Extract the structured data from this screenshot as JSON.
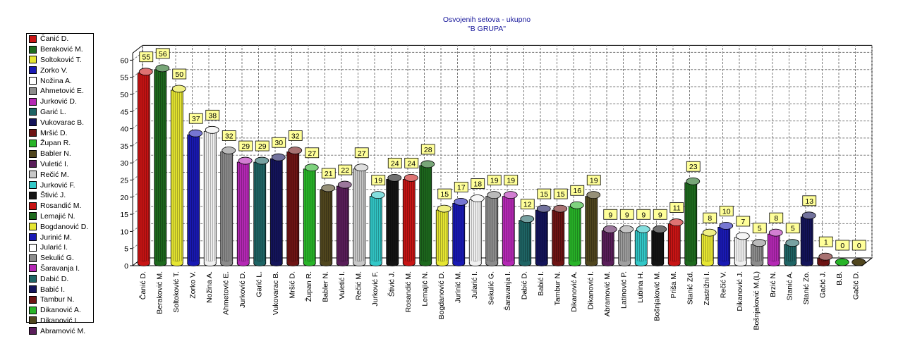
{
  "chart_data": {
    "type": "bar",
    "title": "Osvojenih setova - ukupno",
    "subtitle": "\"B GRUPA\"",
    "ylim": [
      0,
      60
    ],
    "yticks": [
      0,
      5,
      10,
      15,
      20,
      25,
      30,
      35,
      40,
      45,
      50,
      55,
      60
    ],
    "grid": true,
    "legend_position": "left",
    "categories": [
      "Čanić D.",
      "Beraković M.",
      "Soltoković T.",
      "Zorko V.",
      "Nožina A.",
      "Ahmetović E.",
      "Jurković D.",
      "Garić L.",
      "Vukovarac B.",
      "Mršić D.",
      "Župan R.",
      "Babler N.",
      "Vuletić I.",
      "Rečić M.",
      "Jurković F.",
      "Štivić J.",
      "Rosandić M.",
      "Lemajić N.",
      "Bogdanović D.",
      "Jurinić M.",
      "Jularić I.",
      "Sekulić G.",
      "Šaravanja I.",
      "Dabić D.",
      "Babić I.",
      "Tambur N.",
      "Dikanović A.",
      "Dikanović I.",
      "Abramović M.",
      "Latinović P.",
      "Lubina H.",
      "Bošnjaković M.",
      "Priša M.",
      "Stanić Zd.",
      "Zastrižni I.",
      "Rečić V.",
      "Dikanović J.",
      "Bošnjaković M.(L)",
      "Brzić N.",
      "Stanić A.",
      "Stanić Zo.",
      "Gačić J.",
      "B.B.",
      "Gačić D."
    ],
    "values": [
      55,
      56,
      50,
      37,
      38,
      32,
      29,
      29,
      30,
      32,
      27,
      21,
      22,
      27,
      19,
      24,
      24,
      28,
      15,
      17,
      18,
      19,
      19,
      12,
      15,
      15,
      16,
      19,
      9,
      9,
      9,
      9,
      11,
      23,
      8,
      10,
      7,
      5,
      8,
      5,
      13,
      1,
      0,
      0
    ],
    "colors": [
      "#c81414",
      "#1e6a1e",
      "#e6e632",
      "#1a1ab4",
      "#f0f0f0",
      "#8c8c8c",
      "#b428b4",
      "#1e6464",
      "#14145a",
      "#6e1414",
      "#28b428",
      "#50461e",
      "#5a1e5a",
      "#c8c8c8",
      "#32c8c8",
      "#141414",
      "#c81414",
      "#1e6a1e",
      "#e6e632",
      "#1a1ab4",
      "#f0f0f0",
      "#8c8c8c",
      "#b428b4",
      "#1e6464",
      "#14145a",
      "#6e1414",
      "#28b428",
      "#50461e",
      "#5a1e5a",
      "#a0a0a0",
      "#32c8c8",
      "#141414",
      "#c81414",
      "#1e6a1e",
      "#e6e632",
      "#1a1ab4",
      "#f0f0f0",
      "#8c8c8c",
      "#b428b4",
      "#1e6464",
      "#14145a",
      "#6e1414",
      "#28b428",
      "#50461e"
    ]
  },
  "legend": {
    "items": [
      {
        "label": "Čanić D.",
        "color": "#c81414"
      },
      {
        "label": "Beraković M.",
        "color": "#1e6a1e"
      },
      {
        "label": "Soltoković T.",
        "color": "#e6e632"
      },
      {
        "label": "Zorko V.",
        "color": "#1a1ab4"
      },
      {
        "label": "Nožina A.",
        "color": "#ffffff"
      },
      {
        "label": "Ahmetović E.",
        "color": "#8c8c8c"
      },
      {
        "label": "Jurković D.",
        "color": "#b428b4"
      },
      {
        "label": "Garić L.",
        "color": "#1e6464"
      },
      {
        "label": "Vukovarac B.",
        "color": "#14145a"
      },
      {
        "label": "Mršić D.",
        "color": "#6e1414"
      },
      {
        "label": "Župan R.",
        "color": "#28b428"
      },
      {
        "label": "Babler N.",
        "color": "#50461e"
      },
      {
        "label": "Vuletić I.",
        "color": "#5a1e5a"
      },
      {
        "label": "Rečić M.",
        "color": "#c8c8c8"
      },
      {
        "label": "Jurković F.",
        "color": "#32c8c8"
      },
      {
        "label": "Štivić J.",
        "color": "#141414"
      },
      {
        "label": "Rosandić M.",
        "color": "#c81414"
      },
      {
        "label": "Lemajić N.",
        "color": "#1e6a1e"
      },
      {
        "label": "Bogdanović D.",
        "color": "#e6e632"
      },
      {
        "label": "Jurinić M.",
        "color": "#1a1ab4"
      },
      {
        "label": "Jularić I.",
        "color": "#ffffff"
      },
      {
        "label": "Sekulić G.",
        "color": "#8c8c8c"
      },
      {
        "label": "Šaravanja I.",
        "color": "#b428b4"
      },
      {
        "label": "Dabić D.",
        "color": "#1e6464"
      },
      {
        "label": "Babić I.",
        "color": "#14145a"
      },
      {
        "label": "Tambur N.",
        "color": "#6e1414"
      },
      {
        "label": "Dikanović A.",
        "color": "#28b428"
      },
      {
        "label": "Dikanović I.",
        "color": "#50461e"
      },
      {
        "label": "Abramović M.",
        "color": "#5a1e5a"
      }
    ]
  }
}
